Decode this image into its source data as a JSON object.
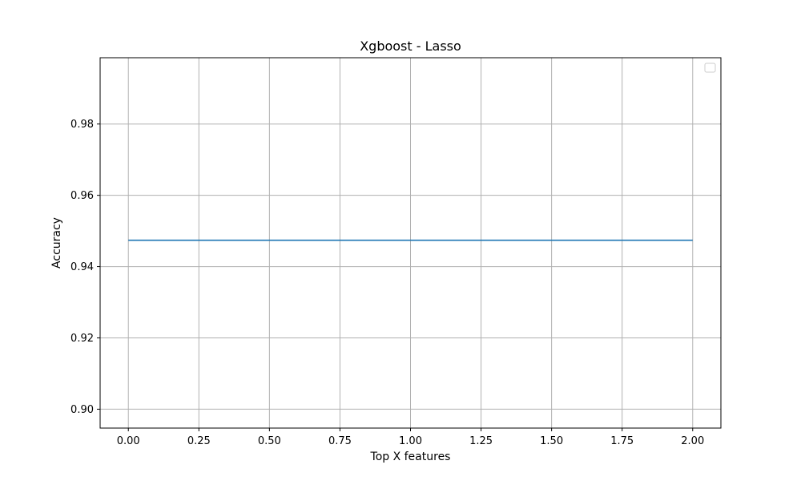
{
  "chart_data": {
    "type": "line",
    "title": "Xgboost - Lasso",
    "xlabel": "Top X features",
    "ylabel": "Accuracy",
    "xlim": [
      -0.1,
      2.1
    ],
    "ylim": [
      0.8947,
      0.9986
    ],
    "xticks": [
      0.0,
      0.25,
      0.5,
      0.75,
      1.0,
      1.25,
      1.5,
      1.75,
      2.0
    ],
    "xtick_labels": [
      "0.00",
      "0.25",
      "0.50",
      "0.75",
      "1.00",
      "1.25",
      "1.50",
      "1.75",
      "2.00"
    ],
    "yticks": [
      0.9,
      0.92,
      0.94,
      0.96,
      0.98
    ],
    "ytick_labels": [
      "0.90",
      "0.92",
      "0.94",
      "0.96",
      "0.98"
    ],
    "grid": true,
    "legend": {
      "placement": "top-right",
      "entries": []
    },
    "series": [
      {
        "x": [
          0,
          1,
          2
        ],
        "values": [
          0.9474,
          0.9474,
          0.9474
        ],
        "color": "#1f77b4"
      }
    ],
    "colors": {
      "grid": "#b0b0b0",
      "axes": "#000000",
      "line": "#1f77b4",
      "legend_border": "#cccccc"
    }
  }
}
